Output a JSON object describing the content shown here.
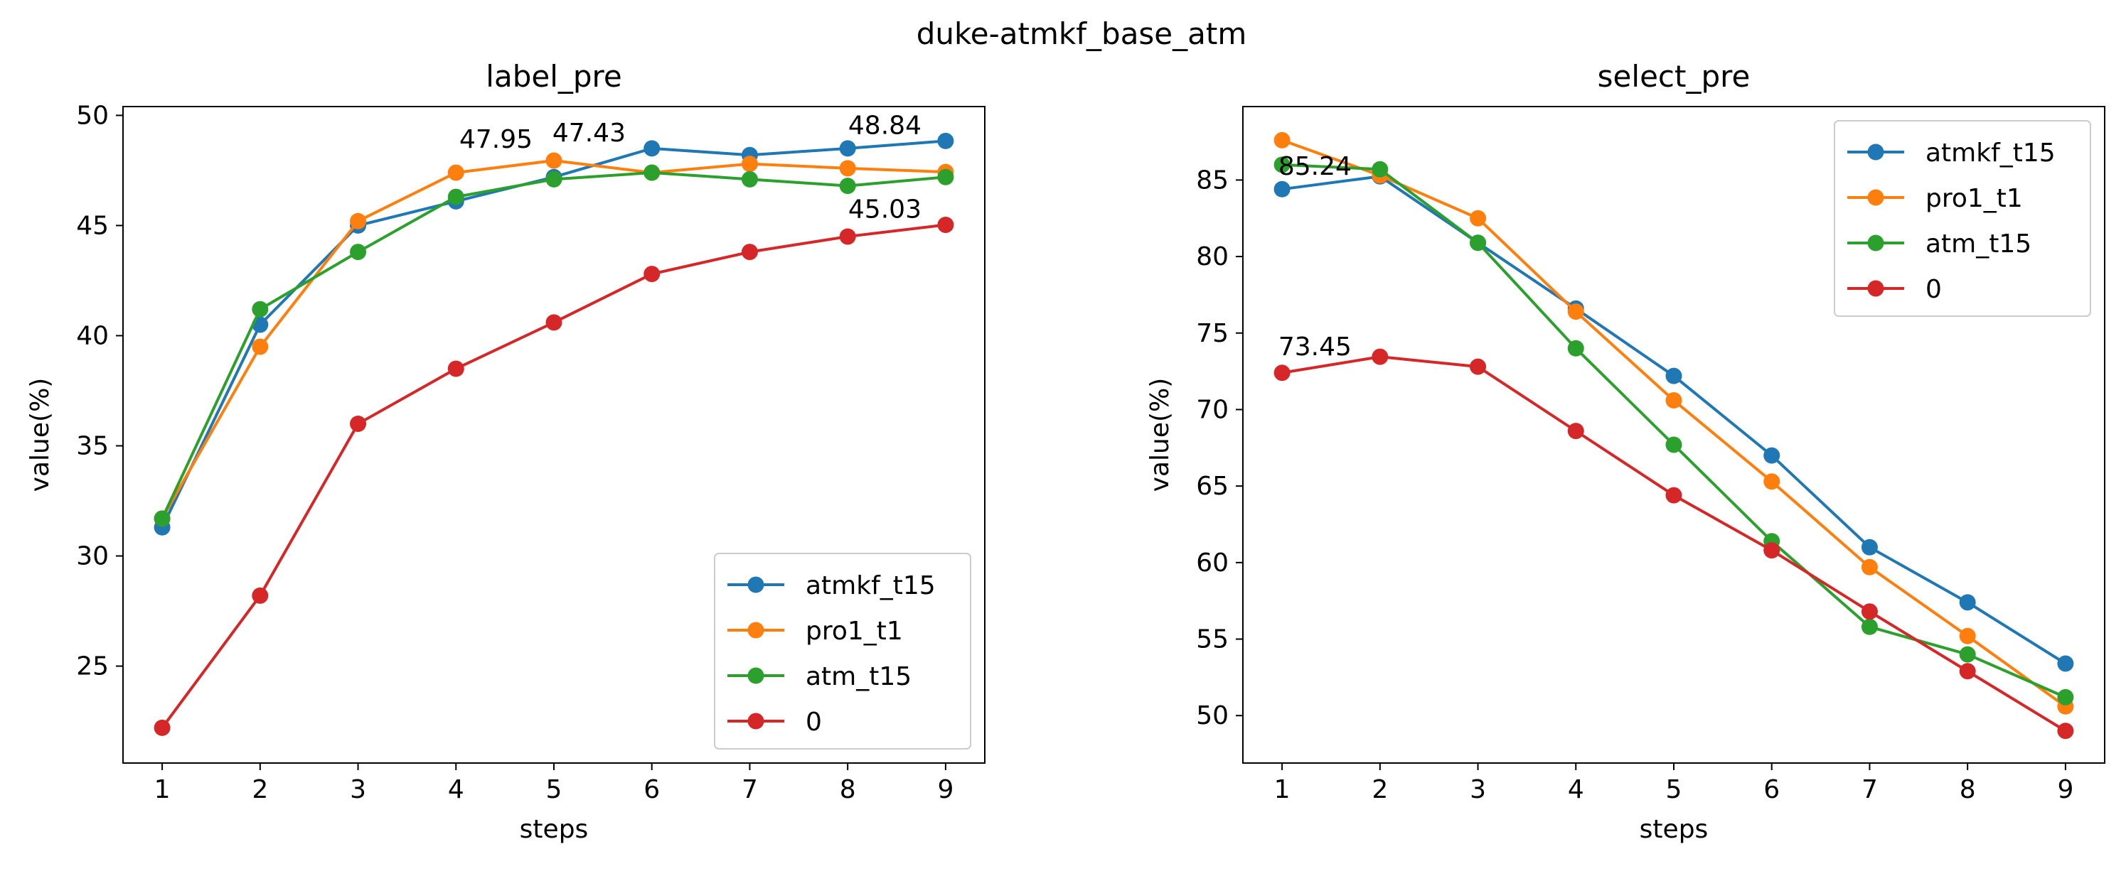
{
  "figure": {
    "suptitle": "duke-atmkf_base_atm"
  },
  "chart_data": [
    {
      "type": "line",
      "title": "label_pre",
      "xlabel": "steps",
      "ylabel": "value(%)",
      "x": [
        1,
        2,
        3,
        4,
        5,
        6,
        7,
        8,
        9
      ],
      "xlim": [
        0.6,
        9.4
      ],
      "ylim": [
        20.6,
        50.4
      ],
      "yticks": [
        25,
        30,
        35,
        40,
        45,
        50
      ],
      "grid": false,
      "legend_position": "lower right",
      "series": [
        {
          "name": "atmkf_t15",
          "color": "#1f77b4",
          "values": [
            31.3,
            40.5,
            45.0,
            46.1,
            47.2,
            48.5,
            48.2,
            48.5,
            48.84
          ]
        },
        {
          "name": "pro1_t1",
          "color": "#ff7f0e",
          "values": [
            31.7,
            39.5,
            45.2,
            47.4,
            47.95,
            47.4,
            47.8,
            47.6,
            47.43
          ]
        },
        {
          "name": "atm_t15",
          "color": "#2ca02c",
          "values": [
            31.7,
            41.2,
            43.8,
            46.3,
            47.1,
            47.4,
            47.1,
            46.8,
            47.2
          ]
        },
        {
          "name": "0",
          "color": "#d62728",
          "values": [
            22.2,
            28.2,
            36.0,
            38.5,
            40.6,
            42.8,
            43.8,
            44.5,
            45.03
          ]
        }
      ],
      "annotations": [
        {
          "text": "47.95",
          "x": 5,
          "y": 47.95
        },
        {
          "text": "47.43",
          "x": 9,
          "y": 47.43
        },
        {
          "text": "48.84",
          "x": 9,
          "y": 48.84
        },
        {
          "text": "45.03",
          "x": 9,
          "y": 45.03
        }
      ]
    },
    {
      "type": "line",
      "title": "select_pre",
      "xlabel": "steps",
      "ylabel": "value(%)",
      "x": [
        1,
        2,
        3,
        4,
        5,
        6,
        7,
        8,
        9
      ],
      "xlim": [
        0.6,
        9.4
      ],
      "ylim": [
        46.9,
        89.8
      ],
      "yticks": [
        50,
        55,
        60,
        65,
        70,
        75,
        80,
        85
      ],
      "grid": false,
      "legend_position": "upper right",
      "series": [
        {
          "name": "atmkf_t15",
          "color": "#1f77b4",
          "values": [
            84.4,
            85.24,
            80.9,
            76.6,
            72.2,
            67.0,
            61.0,
            57.4,
            53.4
          ]
        },
        {
          "name": "pro1_t1",
          "color": "#ff7f0e",
          "values": [
            87.6,
            85.3,
            82.5,
            76.4,
            70.6,
            65.3,
            59.7,
            55.2,
            50.6
          ]
        },
        {
          "name": "atm_t15",
          "color": "#2ca02c",
          "values": [
            86.0,
            85.7,
            80.9,
            74.0,
            67.7,
            61.4,
            55.8,
            54.0,
            51.2
          ]
        },
        {
          "name": "0",
          "color": "#d62728",
          "values": [
            72.4,
            73.45,
            72.8,
            68.6,
            64.4,
            60.8,
            56.8,
            52.9,
            49.0
          ]
        }
      ],
      "annotations": [
        {
          "text": "85.24",
          "x": 2,
          "y": 85.24
        },
        {
          "text": "73.45",
          "x": 2,
          "y": 73.45
        }
      ]
    }
  ]
}
